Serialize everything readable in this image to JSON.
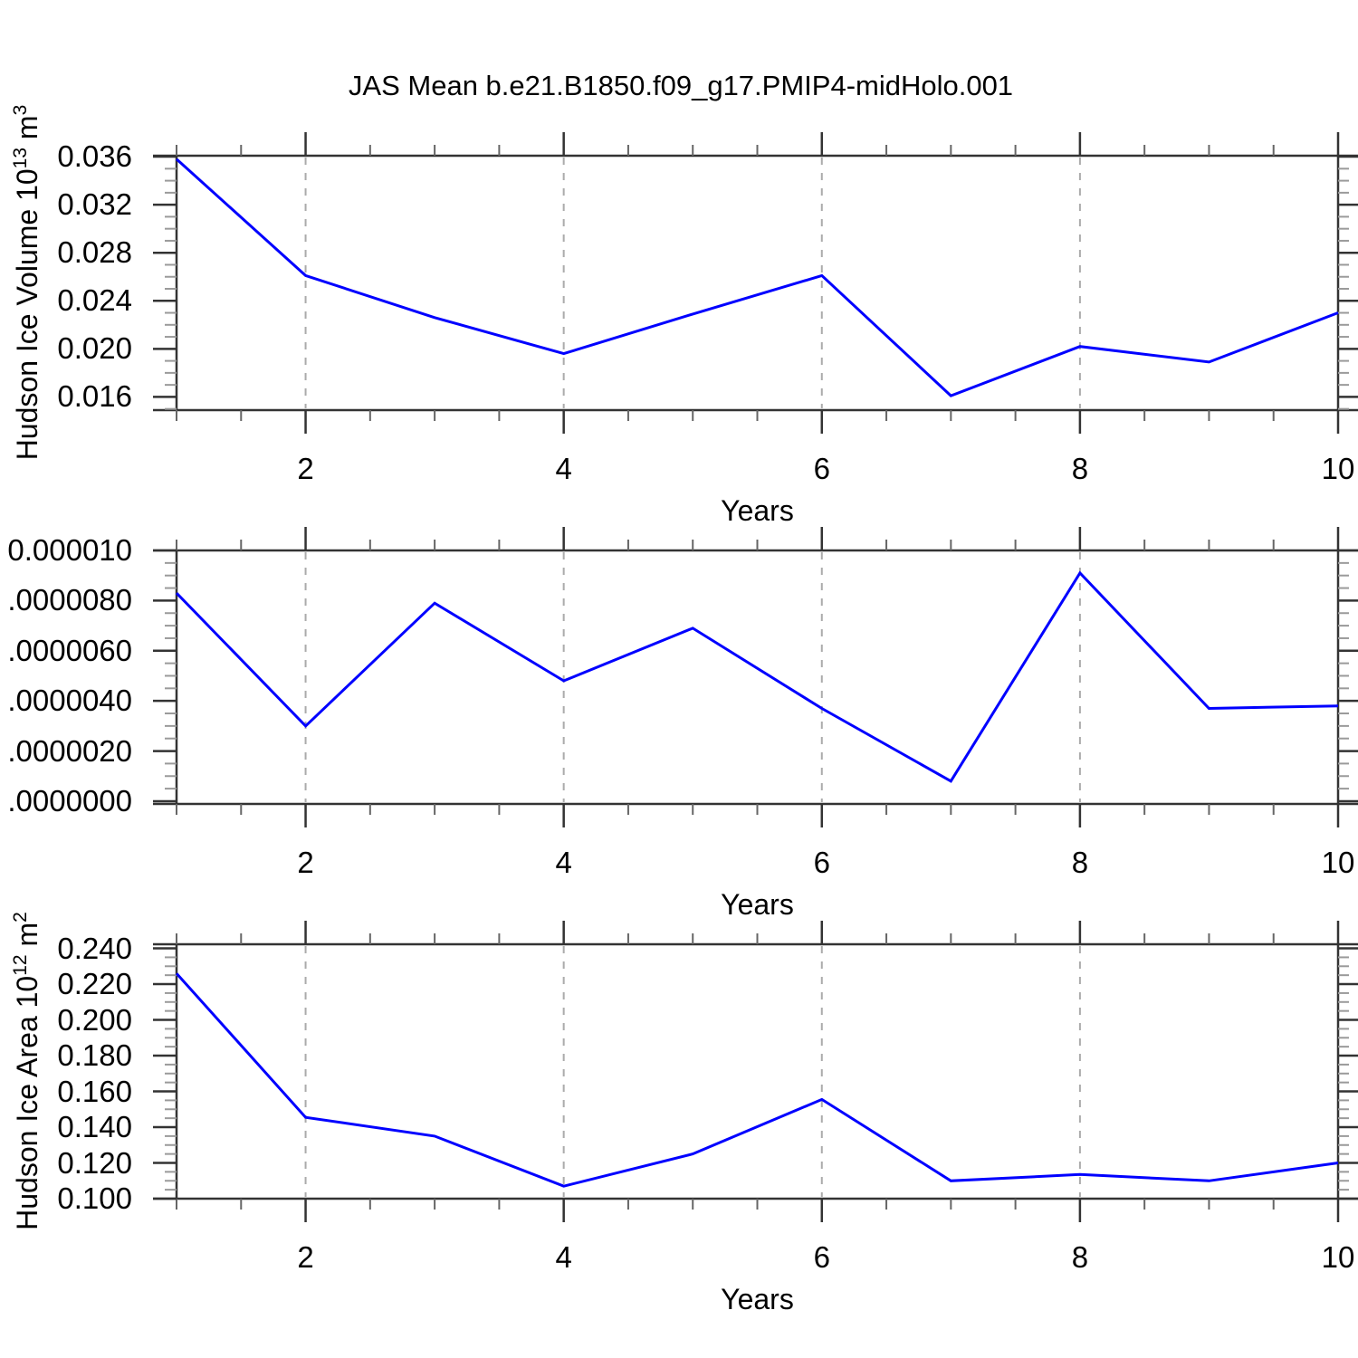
{
  "page": {
    "title": "JAS Mean b.e21.B1850.f09_g17.PMIP4-midHolo.001",
    "background_color": "#ffffff"
  },
  "style": {
    "line_color": "#0000ff",
    "grid_color": "#ababab",
    "axis_color": "#333333",
    "minor_tick_color": "#9a9a9a",
    "text_color": "#000000"
  },
  "x_axis": {
    "label": "Years",
    "min": 1,
    "max": 10,
    "major_ticks": [
      2,
      4,
      6,
      8,
      10
    ],
    "minor_step": 0.5,
    "grid_years": [
      2,
      4,
      6,
      8
    ]
  },
  "chart_data": [
    {
      "type": "line",
      "name": "hudson-ice-volume",
      "title": "",
      "xlabel": "Years",
      "ylabel": {
        "prefix": "Hudson Ice Volume 10",
        "sup1": "13",
        "mid": " m",
        "sup2": "3"
      },
      "x": [
        1,
        2,
        3,
        4,
        5,
        6,
        7,
        8,
        9,
        10
      ],
      "y": [
        0.0358,
        0.0261,
        0.0226,
        0.0196,
        0.0229,
        0.0261,
        0.0161,
        0.0202,
        0.0189,
        0.023
      ],
      "xlim": [
        1,
        10
      ],
      "ylim": [
        0.0149,
        0.03608
      ],
      "y_major": [
        {
          "value": 0.036,
          "label": "0.036"
        },
        {
          "value": 0.032,
          "label": "0.032"
        },
        {
          "value": 0.028,
          "label": "0.028"
        },
        {
          "value": 0.024,
          "label": "0.024"
        },
        {
          "value": 0.02,
          "label": "0.020"
        },
        {
          "value": 0.016,
          "label": "0.016"
        }
      ],
      "y_minor_step": 0.001,
      "grid": "vertical-dashed"
    },
    {
      "type": "line",
      "name": "hudson-ice-growth",
      "title": "",
      "xlabel": "Years",
      "ylabel": null,
      "x": [
        1,
        2,
        3,
        4,
        5,
        6,
        7,
        8,
        9,
        10
      ],
      "y": [
        8.3e-06,
        3e-06,
        7.9e-06,
        4.8e-06,
        6.9e-06,
        3.7e-06,
        8e-07,
        9.1e-06,
        3.7e-06,
        3.8e-06
      ],
      "xlim": [
        1,
        10
      ],
      "ylim": [
        -1.1e-07,
        1e-05
      ],
      "y_major": [
        {
          "value": 1e-05,
          "label": "0.000010"
        },
        {
          "value": 8e-06,
          "label": ".0000080"
        },
        {
          "value": 6e-06,
          "label": ".0000060"
        },
        {
          "value": 4e-06,
          "label": ".0000040"
        },
        {
          "value": 2e-06,
          "label": ".0000020"
        },
        {
          "value": 0.0,
          "label": ".0000000"
        }
      ],
      "y_minor_step": 5e-07,
      "grid": "vertical-dashed"
    },
    {
      "type": "line",
      "name": "hudson-ice-area",
      "title": "",
      "xlabel": "Years",
      "ylabel": {
        "prefix": "Hudson Ice Area 10",
        "sup1": "12",
        "mid": " m",
        "sup2": "2"
      },
      "x": [
        1,
        2,
        3,
        4,
        5,
        6,
        7,
        8,
        9,
        10
      ],
      "y": [
        0.226,
        0.1455,
        0.135,
        0.107,
        0.125,
        0.1555,
        0.11,
        0.1135,
        0.11,
        0.12
      ],
      "xlim": [
        1,
        10
      ],
      "ylim": [
        0.1,
        0.2423
      ],
      "y_major": [
        {
          "value": 0.24,
          "label": "0.240"
        },
        {
          "value": 0.22,
          "label": "0.220"
        },
        {
          "value": 0.2,
          "label": "0.200"
        },
        {
          "value": 0.18,
          "label": "0.180"
        },
        {
          "value": 0.16,
          "label": "0.160"
        },
        {
          "value": 0.14,
          "label": "0.140"
        },
        {
          "value": 0.12,
          "label": "0.120"
        },
        {
          "value": 0.1,
          "label": "0.100"
        }
      ],
      "y_minor_step": 0.005,
      "grid": "vertical-dashed"
    }
  ]
}
